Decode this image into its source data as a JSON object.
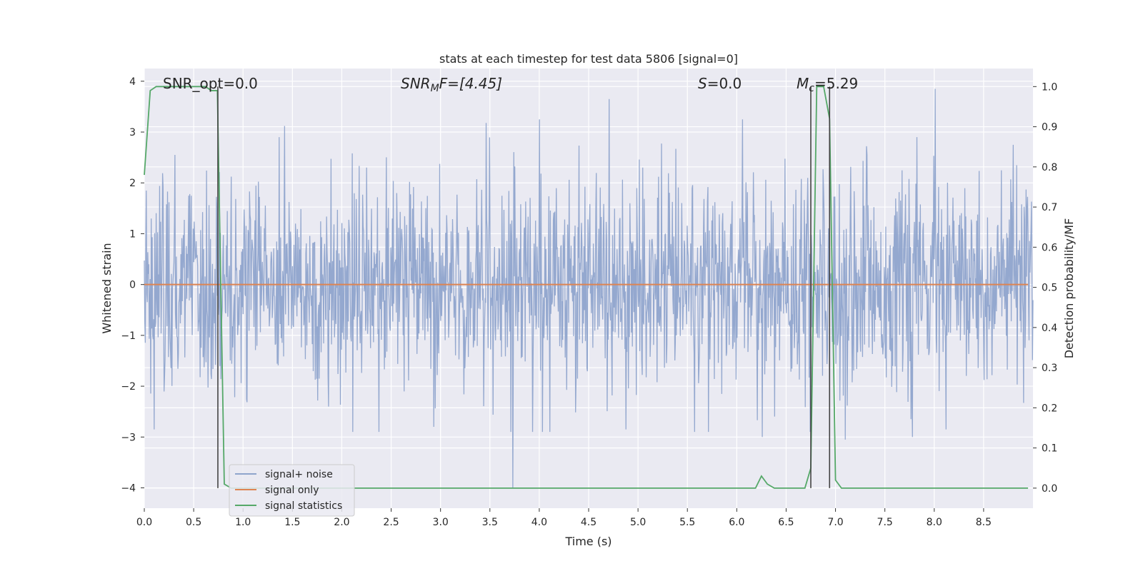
{
  "chart_data": {
    "type": "line",
    "title": "stats at each timestep for test data 5806 [signal=0]",
    "xlabel": "Time (s)",
    "ylabel_left": "Whitened strain",
    "ylabel_right": "Detection probability/MF",
    "xlim": [
      0.0,
      9.0
    ],
    "ylim_left": [
      -4.4,
      4.25
    ],
    "ylim_right": [
      -0.05,
      1.045
    ],
    "x_ticks": [
      0.0,
      0.5,
      1.0,
      1.5,
      2.0,
      2.5,
      3.0,
      3.5,
      4.0,
      4.5,
      5.0,
      5.5,
      6.0,
      6.5,
      7.0,
      7.5,
      8.0,
      8.5
    ],
    "x_tick_labels": [
      "0.0",
      "0.5",
      "1.0",
      "1.5",
      "2.0",
      "2.5",
      "3.0",
      "3.5",
      "4.0",
      "4.5",
      "5.0",
      "5.5",
      "6.0",
      "6.5",
      "7.0",
      "7.5",
      "8.0",
      "8.5"
    ],
    "y_ticks_left": [
      -4,
      -3,
      -2,
      -1,
      0,
      1,
      2,
      3,
      4
    ],
    "y_tick_labels_left": [
      "−4",
      "−3",
      "−2",
      "−1",
      "0",
      "1",
      "2",
      "3",
      "4"
    ],
    "y_ticks_right": [
      0.0,
      0.1,
      0.2,
      0.3,
      0.4,
      0.5,
      0.6,
      0.7,
      0.8,
      0.9,
      1.0
    ],
    "y_tick_labels_right": [
      "0.0",
      "0.1",
      "0.2",
      "0.3",
      "0.4",
      "0.5",
      "0.6",
      "0.7",
      "0.8",
      "0.9",
      "1.0"
    ],
    "annotations": {
      "snr_opt": "SNR_opt=0.0",
      "snr_mf_main": "SNR",
      "snr_mf_sub": "M",
      "snr_mf_rest": "F=[4.45]",
      "s_main": "S",
      "s_rest": "=0.0",
      "mc_main": "M",
      "mc_sub": "c",
      "mc_rest": "=5.29"
    },
    "legend": {
      "placement": "lower-left",
      "entries": [
        "signal+ noise",
        "signal only",
        "signal statistics"
      ]
    },
    "series": [
      {
        "name": "signal+ noise",
        "axis": "left",
        "color": "#8fa4cc",
        "style": "noise",
        "t_range": [
          0.0,
          9.0
        ],
        "n_samples": 1800,
        "std": 1.0,
        "notable_peaks": [
          [
            0.31,
            2.55
          ],
          [
            1.42,
            3.12
          ],
          [
            3.46,
            3.18
          ],
          [
            4.0,
            3.25
          ],
          [
            4.71,
            3.65
          ],
          [
            6.06,
            3.25
          ],
          [
            7.32,
            2.55
          ],
          [
            8.01,
            3.85
          ],
          [
            8.8,
            2.75
          ]
        ],
        "notable_troughs": [
          [
            0.1,
            -2.85
          ],
          [
            2.93,
            -2.8
          ],
          [
            3.73,
            -4.0
          ],
          [
            4.88,
            -2.85
          ],
          [
            6.26,
            -3.0
          ],
          [
            7.1,
            -3.05
          ],
          [
            7.78,
            -3.0
          ],
          [
            8.12,
            -2.85
          ]
        ]
      },
      {
        "name": "signal only",
        "axis": "left",
        "color": "#dd8452",
        "x": [
          0.0,
          8.95
        ],
        "y": [
          0.0,
          0.0
        ]
      },
      {
        "name": "signal statistics",
        "axis": "right",
        "color": "#55a868",
        "x": [
          0.0,
          0.06,
          0.12,
          0.2,
          0.5,
          0.62,
          0.68,
          0.74,
          0.81,
          0.88,
          6.19,
          6.25,
          6.31,
          6.38,
          6.69,
          6.75,
          6.81,
          6.88,
          6.94,
          7.0,
          7.06,
          8.95
        ],
        "y": [
          0.78,
          0.99,
          1.0,
          1.0,
          1.0,
          1.0,
          0.99,
          0.99,
          0.01,
          0.0,
          0.0,
          0.03,
          0.01,
          0.0,
          0.0,
          0.05,
          1.0,
          1.0,
          0.92,
          0.02,
          0.0,
          0.0
        ]
      }
    ],
    "detection_markers": {
      "color": "#444444",
      "x": [
        0.745,
        6.75,
        6.94
      ]
    }
  },
  "colors": {
    "axes_bg": "#eaeaf2",
    "grid": "#ffffff"
  }
}
